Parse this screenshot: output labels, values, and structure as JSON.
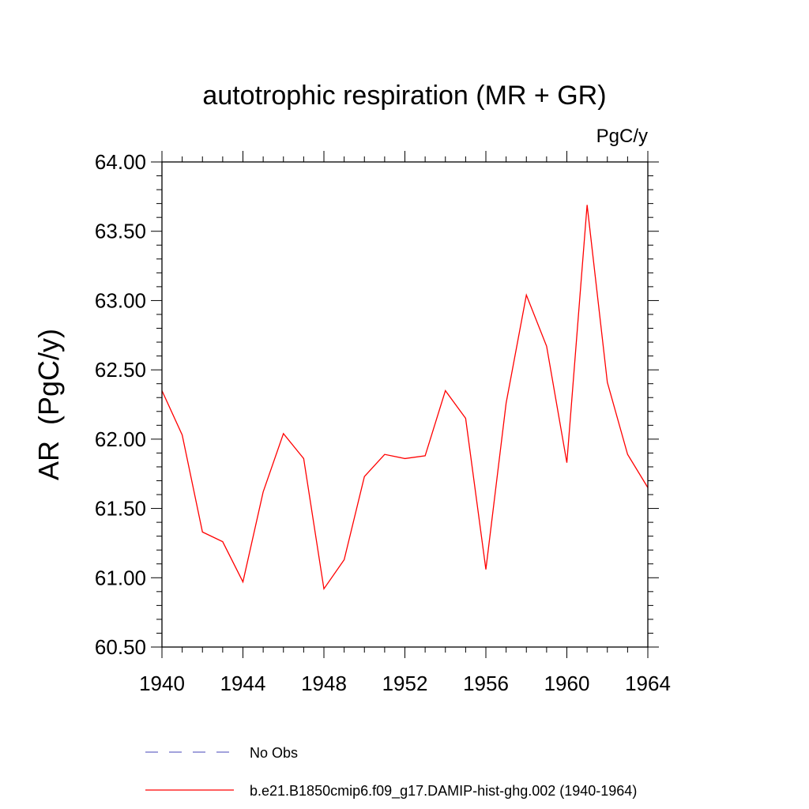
{
  "chart_data": {
    "type": "line",
    "title": "autotrophic respiration (MR + GR)",
    "units": "PgC/y",
    "xlabel": "",
    "ylabel": "AR  (PgC/y)",
    "xlim": [
      1940,
      1964
    ],
    "ylim": [
      60.5,
      64.0
    ],
    "xticks": [
      1940,
      1944,
      1948,
      1952,
      1956,
      1960,
      1964
    ],
    "xtick_labels": [
      "1940",
      "1944",
      "1948",
      "1952",
      "1956",
      "1960",
      "1964"
    ],
    "yticks": [
      60.5,
      61.0,
      61.5,
      62.0,
      62.5,
      63.0,
      63.5,
      64.0
    ],
    "ytick_labels": [
      "60.50",
      "61.00",
      "61.50",
      "62.00",
      "62.50",
      "63.00",
      "63.50",
      "64.00"
    ],
    "grid": false,
    "legend_position": "bottom",
    "series": [
      {
        "name": "No Obs",
        "style": "dashed",
        "color": "#6a6ac8",
        "x": [],
        "values": []
      },
      {
        "name": "b.e21.B1850cmip6.f09_g17.DAMIP-hist-ghg.002 (1940-1964)",
        "style": "solid",
        "color": "#ff0000",
        "x": [
          1940,
          1941,
          1942,
          1943,
          1944,
          1945,
          1946,
          1947,
          1948,
          1949,
          1950,
          1951,
          1952,
          1953,
          1954,
          1955,
          1956,
          1957,
          1958,
          1959,
          1960,
          1961,
          1962,
          1963,
          1964
        ],
        "values": [
          62.35,
          62.03,
          61.33,
          61.26,
          60.97,
          61.62,
          62.04,
          61.86,
          60.92,
          61.13,
          61.73,
          61.89,
          61.86,
          61.88,
          62.35,
          62.15,
          61.06,
          62.26,
          63.04,
          62.67,
          61.83,
          63.69,
          62.41,
          61.89,
          61.65
        ]
      }
    ]
  }
}
